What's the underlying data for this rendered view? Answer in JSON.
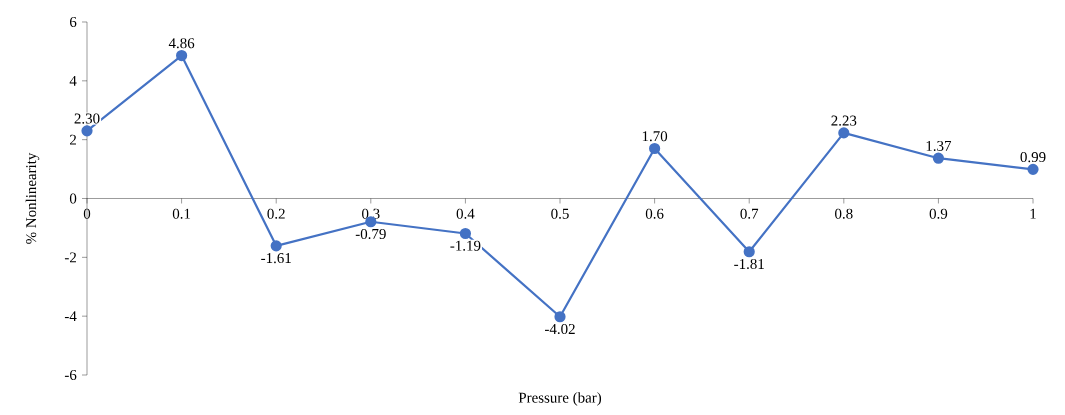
{
  "chart_data": {
    "type": "line",
    "xlabel": "Pressure (bar)",
    "ylabel": "% Nonlinearity",
    "x": [
      0,
      0.1,
      0.2,
      0.3,
      0.4,
      0.5,
      0.6,
      0.7,
      0.8,
      0.9,
      1
    ],
    "values": [
      2.3,
      4.86,
      -1.61,
      -0.79,
      -1.19,
      -4.02,
      1.7,
      -1.81,
      2.23,
      1.37,
      0.99
    ],
    "value_labels": [
      "2.30",
      "4.86",
      "-1.61",
      "-0.79",
      "-1.19",
      "-4.02",
      "1.70",
      "-1.81",
      "2.23",
      "1.37",
      "0.99"
    ],
    "color": "#4472c4",
    "marker": "circle",
    "line_style": "solid",
    "xlim": [
      0,
      1
    ],
    "ylim": [
      -6,
      6
    ],
    "xticks": [
      0,
      0.1,
      0.2,
      0.3,
      0.4,
      0.5,
      0.6,
      0.7,
      0.8,
      0.9,
      1
    ],
    "yticks": [
      -6,
      -4,
      -2,
      0,
      2,
      4,
      6
    ]
  }
}
